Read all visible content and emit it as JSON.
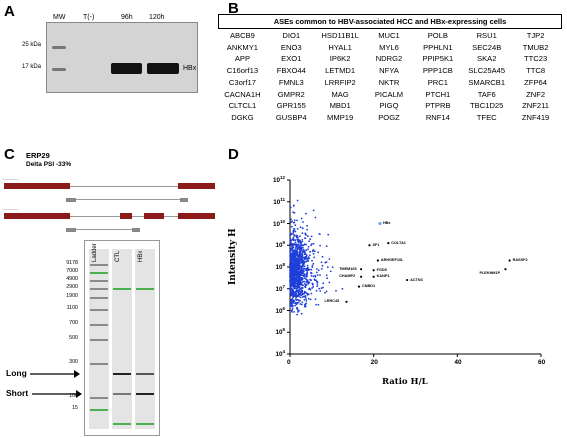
{
  "panel_a": {
    "letter": "A",
    "lanes": [
      "MW",
      "T(-)",
      "96h",
      "120h"
    ],
    "mw_markers": [
      "25 kDa",
      "17 kDa"
    ],
    "band_label": "HBx"
  },
  "panel_b": {
    "letter": "B",
    "title": "ASEs common to HBV-associated HCC and HBx-expressing cells",
    "genes": [
      "ABCB9",
      "DIO1",
      "HSD11B1L",
      "MUC1",
      "POLB",
      "RSU1",
      "TJP2",
      "ANKMY1",
      "ENO3",
      "HYAL1",
      "MYL6",
      "PPHLN1",
      "SEC24B",
      "TMUB2",
      "APP",
      "EXO1",
      "IP6K2",
      "NDRG2",
      "PPIP5K1",
      "SKA2",
      "TTC23",
      "C16orf13",
      "FBXO44",
      "LETMD1",
      "NFYA",
      "PPP1CB",
      "SLC25A45",
      "TTC8",
      "C3orf17",
      "FMNL3",
      "LRRFIP2",
      "NKTR",
      "PRC1",
      "SMARCB1",
      "ZFP64",
      "CACNA1H",
      "GMPR2",
      "MAG",
      "PICALM",
      "PTCH1",
      "TAF6",
      "ZNF2",
      "CLTCL1",
      "GPR155",
      "MBD1",
      "PIGQ",
      "PTPRB",
      "TBC1D25",
      "ZNF211",
      "DGKG",
      "GUSBP4",
      "MMP19",
      "POGZ",
      "RNF14",
      "TFEC",
      "ZNF419"
    ]
  },
  "panel_c": {
    "letter": "C",
    "gene": "ERP29",
    "delta_psi": "Delta PSI -33%",
    "gel_lanes": [
      "Ladder",
      "CTL",
      "HBx"
    ],
    "ladder_bp": [
      "9178",
      "7000",
      "4900",
      "2900",
      "1900",
      "1100",
      "700",
      "500",
      "300",
      "100",
      "15"
    ],
    "long_label": "Long",
    "short_label": "Short"
  },
  "panel_d": {
    "letter": "D"
  },
  "chart_data": {
    "type": "scatter",
    "xlabel": "Ratio H/L",
    "ylabel": "Intensity H",
    "x_ticks": [
      "0",
      "20",
      "40",
      "60"
    ],
    "y_ticks": [
      "10^4",
      "10^5",
      "10^6",
      "10^7",
      "10^8",
      "10^9",
      "10^10",
      "10^11",
      "10^12"
    ],
    "y_scale": "log",
    "xlim": [
      0,
      60
    ],
    "ylim_log10": [
      4,
      12
    ],
    "point_color": "#1f3fd8",
    "highlight_color": "#000000",
    "labeled_points": [
      {
        "name": "HBx",
        "x": 21.5,
        "log10_y": 10.0
      },
      {
        "name": "SF1",
        "x": 19.0,
        "log10_y": 9.0
      },
      {
        "name": "COLTA1",
        "x": 23.5,
        "log10_y": 9.1
      },
      {
        "name": "ARHGEF10L",
        "x": 21.0,
        "log10_y": 8.3
      },
      {
        "name": "TMEM165",
        "x": 17.0,
        "log10_y": 7.9
      },
      {
        "name": "FGD5",
        "x": 20.0,
        "log10_y": 7.85
      },
      {
        "name": "CHAMP2",
        "x": 17.0,
        "log10_y": 7.55
      },
      {
        "name": "KANP1",
        "x": 20.0,
        "log10_y": 7.55
      },
      {
        "name": "ACTN3",
        "x": 28.0,
        "log10_y": 7.4
      },
      {
        "name": "CNBD1",
        "x": 16.5,
        "log10_y": 7.1
      },
      {
        "name": "LRRC45",
        "x": 13.5,
        "log10_y": 6.4
      },
      {
        "name": "RASSF2",
        "x": 52.5,
        "log10_y": 8.3
      },
      {
        "name": "PLEKHM1P",
        "x": 51.5,
        "log10_y": 7.9
      }
    ]
  }
}
